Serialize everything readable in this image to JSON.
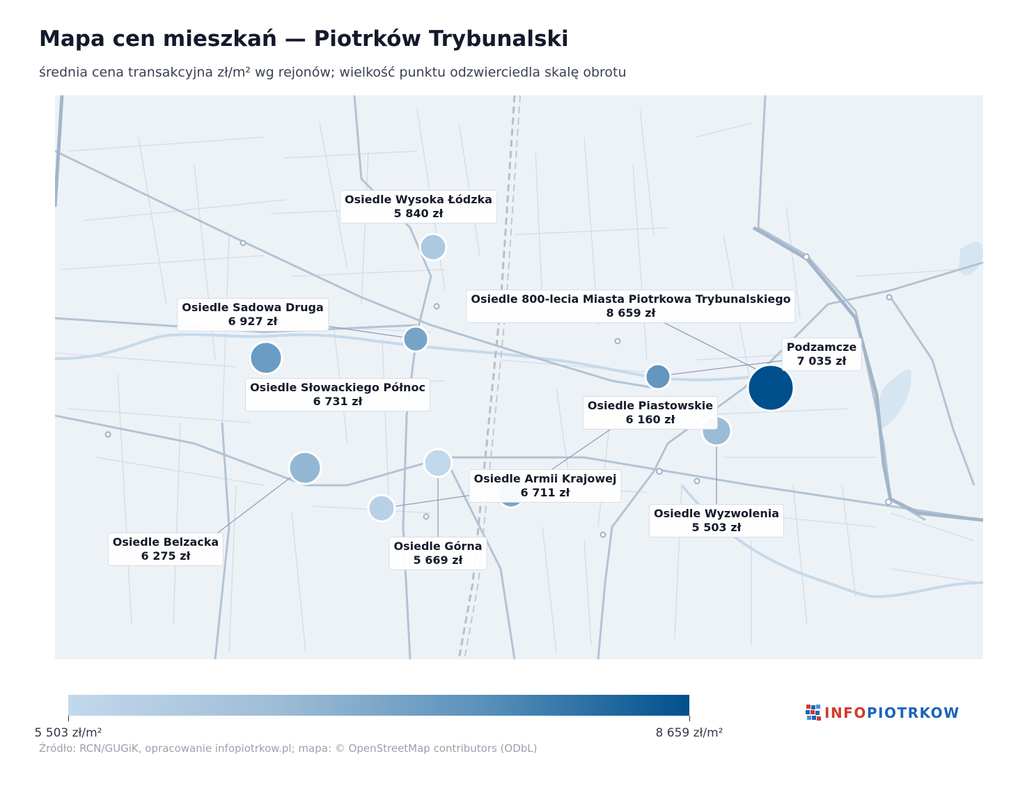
{
  "title": "Mapa cen mieszkań — Piotrków Trybunalski",
  "subtitle": "średnia cena transakcyjna zł/m² wg rejonów; wielkość punktu odzwierciedla skalę obrotu",
  "source": "Źródło: RCN/GUGiK, opracowanie infopiotrkow.pl; mapa: © OpenStreetMap contributors (ODbL)",
  "logo": {
    "prefix": "INFO",
    "suffix": "PIOTRKOW",
    "colors": [
      "#d23a2e",
      "#1a65b8"
    ]
  },
  "colorbar": {
    "min_label": "5 503 zł/m²",
    "max_label": "8 659 zł/m²",
    "min": 5503,
    "max": 8659,
    "colors": [
      "#c2d8ec",
      "#00508e"
    ]
  },
  "districts": [
    {
      "name": "Osiedle Wysoka Łódzka",
      "price_label": "5 840 zł",
      "price": 5840
    },
    {
      "name": "Osiedle Sadowa Druga",
      "price_label": "6 927 zł",
      "price": 6927
    },
    {
      "name": "Osiedle 800-lecia Miasta Piotrkowa Trybunalskiego",
      "price_label": "8 659 zł",
      "price": 8659
    },
    {
      "name": "Podzamcze",
      "price_label": "7 035 zł",
      "price": 7035
    },
    {
      "name": "Osiedle Słowackiego Północ",
      "price_label": "6 731 zł",
      "price": 6731
    },
    {
      "name": "Osiedle Piastowskie",
      "price_label": "6 160 zł",
      "price": 6160
    },
    {
      "name": "Osiedle Armii Krajowej",
      "price_label": "6 711 zł",
      "price": 6711
    },
    {
      "name": "Osiedle Wyzwolenia",
      "price_label": "5 503 zł",
      "price": 5503
    },
    {
      "name": "Osiedle Belzacka",
      "price_label": "6 275 zł",
      "price": 6275
    },
    {
      "name": "Osiedle Górna",
      "price_label": "5 669 zł",
      "price": 5669
    }
  ]
}
